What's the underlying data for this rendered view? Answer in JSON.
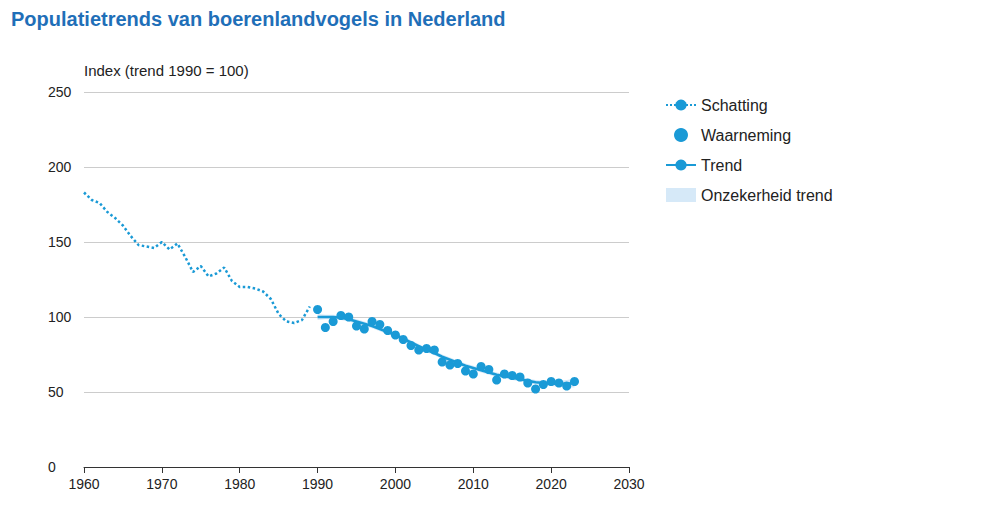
{
  "chart_data": {
    "type": "line",
    "title": "Populatietrends van boerenlandvogels in Nederland",
    "y_label": "Index (trend 1990 = 100)",
    "xlim": [
      1960,
      2030
    ],
    "xticks": [
      1960,
      1970,
      1980,
      1990,
      2000,
      2010,
      2020,
      2030
    ],
    "ylim": [
      0,
      250
    ],
    "yticks": [
      0,
      50,
      100,
      150,
      200,
      250
    ],
    "grid": true,
    "legend": "right",
    "series": [
      {
        "name": "Schatting",
        "type": "line",
        "line_style": "dotted",
        "color": "#1a9ad6",
        "x": [
          1960,
          1961,
          1962,
          1963,
          1964,
          1965,
          1966,
          1967,
          1968,
          1969,
          1970,
          1971,
          1972,
          1973,
          1974,
          1975,
          1976,
          1977,
          1978,
          1979,
          1980,
          1981,
          1982,
          1983,
          1984,
          1985,
          1986,
          1987,
          1988,
          1989
        ],
        "values": [
          183,
          178,
          176,
          170,
          166,
          161,
          154,
          148,
          147,
          146,
          150,
          145,
          149,
          140,
          130,
          134,
          127,
          129,
          133,
          124,
          120,
          120,
          119,
          117,
          112,
          102,
          97,
          96,
          98,
          107
        ]
      },
      {
        "name": "Waarneming",
        "type": "scatter",
        "marker": "circle",
        "color": "#1a9ad6",
        "x": [
          1990,
          1991,
          1992,
          1993,
          1994,
          1995,
          1996,
          1997,
          1998,
          1999,
          2000,
          2001,
          2002,
          2003,
          2004,
          2005,
          2006,
          2007,
          2008,
          2009,
          2010,
          2011,
          2012,
          2013,
          2014,
          2015,
          2016,
          2017,
          2018,
          2019,
          2020,
          2021,
          2022,
          2023
        ],
        "values": [
          105,
          93,
          97,
          101,
          100,
          94,
          92,
          97,
          95,
          91,
          88,
          85,
          81,
          78,
          79,
          78,
          70,
          68,
          69,
          64,
          62,
          67,
          65,
          58,
          62,
          61,
          60,
          56,
          52,
          55,
          57,
          56,
          54,
          57
        ]
      },
      {
        "name": "Trend",
        "type": "line",
        "line_style": "solid",
        "color": "#1a9ad6",
        "x": [
          1990,
          1991,
          1992,
          1993,
          1994,
          1995,
          1996,
          1997,
          1998,
          1999,
          2000,
          2001,
          2002,
          2003,
          2004,
          2005,
          2006,
          2007,
          2008,
          2009,
          2010,
          2011,
          2012,
          2013,
          2014,
          2015,
          2016,
          2017,
          2018,
          2019,
          2020,
          2021,
          2022,
          2023
        ],
        "values": [
          100,
          100,
          100,
          99.5,
          98.5,
          97,
          95.5,
          94,
          92,
          90,
          88,
          85.5,
          83,
          80.5,
          78,
          76,
          73.5,
          71.5,
          69.5,
          67.5,
          66,
          64.5,
          63,
          61.5,
          60.5,
          59.5,
          58.5,
          57.5,
          56.5,
          56,
          55.5,
          55.5,
          55.5,
          56
        ]
      },
      {
        "name": "Onzekerheid trend",
        "type": "band",
        "color": "#d6e9f8",
        "x": [
          1990,
          1991,
          1992,
          1993,
          1994,
          1995,
          1996,
          1997,
          1998,
          1999,
          2000,
          2001,
          2002,
          2003,
          2004,
          2005,
          2006,
          2007,
          2008,
          2009,
          2010,
          2011,
          2012,
          2013,
          2014,
          2015,
          2016,
          2017,
          2018,
          2019,
          2020,
          2021,
          2022,
          2023
        ],
        "lower": [
          98,
          98.5,
          98.5,
          98,
          97,
          95.5,
          94,
          92.5,
          90.5,
          88.5,
          86.5,
          84,
          81.5,
          79,
          76.5,
          74.5,
          72,
          70,
          68,
          66,
          64.5,
          63,
          61.5,
          60,
          59,
          58,
          57,
          56,
          55,
          54.5,
          54,
          53.5,
          53,
          53
        ],
        "upper": [
          102,
          101.5,
          101.5,
          101,
          100,
          98.5,
          97,
          95.5,
          93.5,
          91.5,
          89.5,
          87,
          84.5,
          82,
          79.5,
          77.5,
          75,
          73,
          71,
          69,
          67.5,
          66,
          64.5,
          63,
          62,
          61,
          60,
          59,
          58,
          57.5,
          57,
          57.5,
          58,
          59
        ]
      }
    ]
  }
}
